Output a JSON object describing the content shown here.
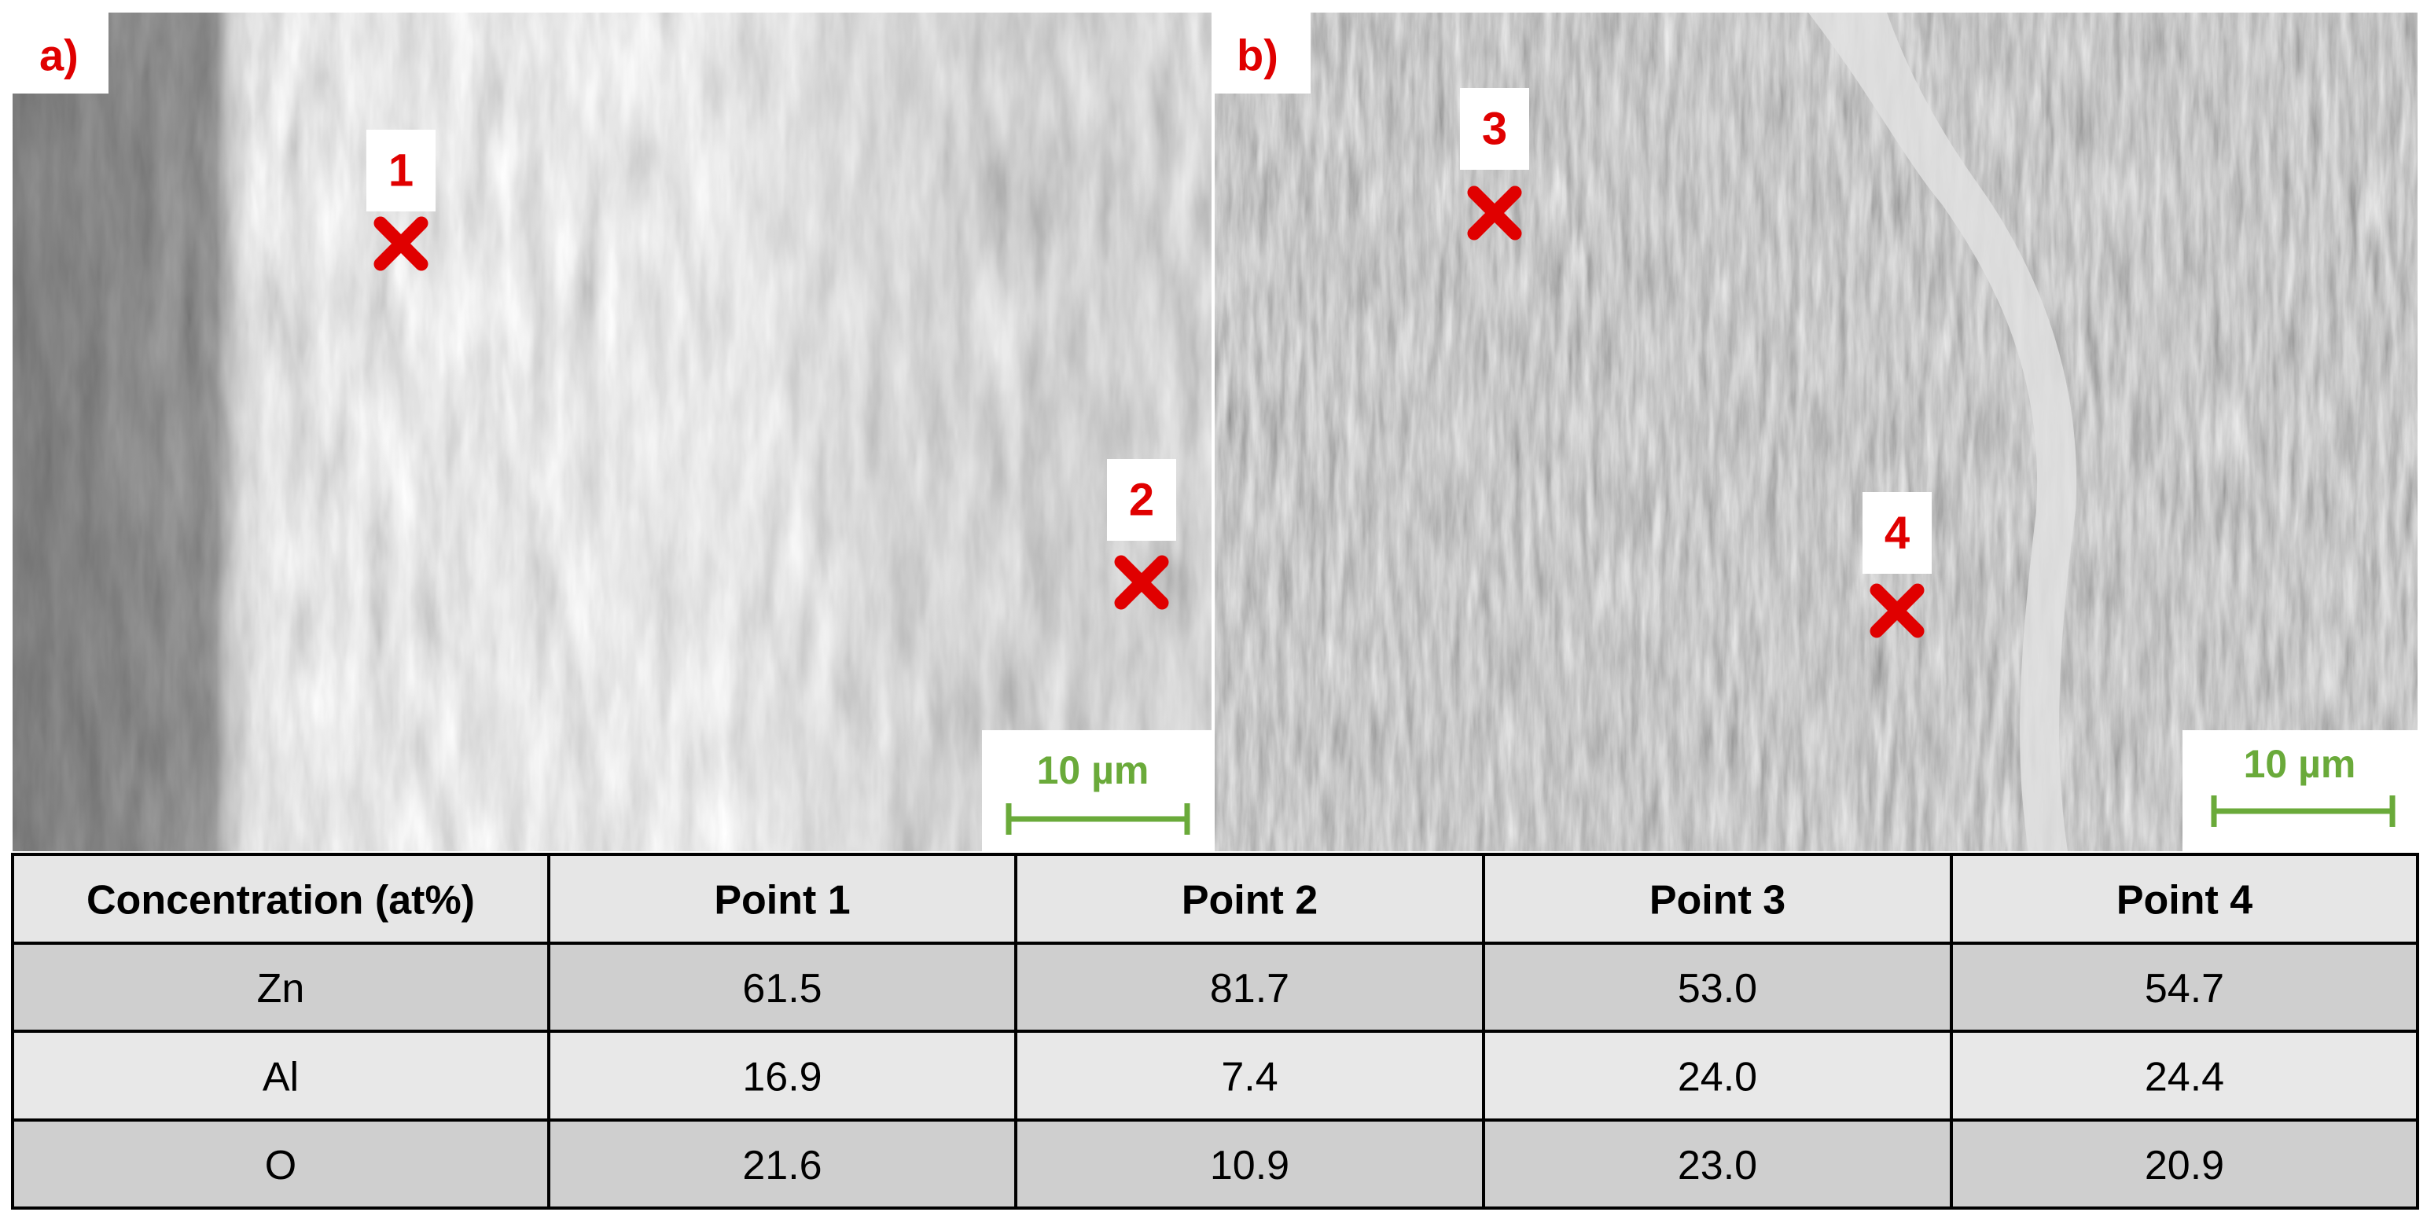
{
  "panels": [
    {
      "label": "a)",
      "points": [
        {
          "label": "1"
        },
        {
          "label": "2"
        }
      ],
      "scale_bar": "10 µm"
    },
    {
      "label": "b)",
      "points": [
        {
          "label": "3"
        },
        {
          "label": "4"
        }
      ],
      "scale_bar": "10 µm"
    }
  ],
  "table": {
    "header": [
      "Concentration (at%)",
      "Point 1",
      "Point 2",
      "Point 3",
      "Point 4"
    ],
    "rows": [
      [
        "Zn",
        "61.5",
        "81.7",
        "53.0",
        "54.7"
      ],
      [
        "Al",
        "16.9",
        "7.4",
        "24.0",
        "24.4"
      ],
      [
        "O",
        "21.6",
        "10.9",
        "23.0",
        "20.9"
      ]
    ]
  }
}
